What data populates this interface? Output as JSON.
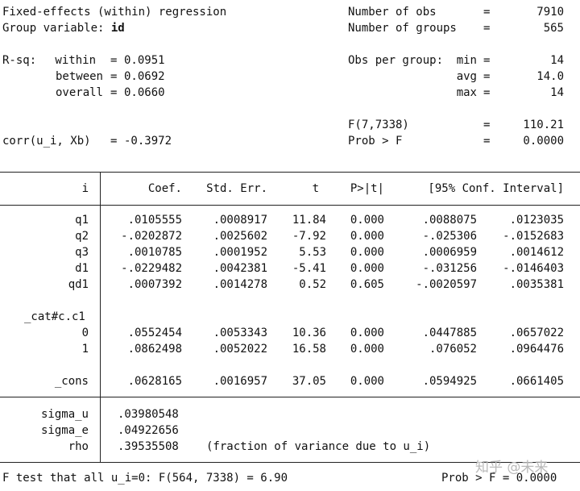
{
  "header": {
    "title": "Fixed-effects (within) regression",
    "group_label": "Group variable: ",
    "group_var": "id",
    "nobs_label": "Number of obs",
    "nobs_eq": "=",
    "nobs": "7910",
    "ngroups_label": "Number of groups",
    "ngroups_eq": "=",
    "ngroups": "565",
    "rsq_label": "R-sq:",
    "within_label": "within",
    "within_eq": "=",
    "within": "0.0951",
    "between_label": "between",
    "between_eq": "=",
    "between": "0.0692",
    "overall_label": "overall",
    "overall_eq": "=",
    "overall": "0.0660",
    "obs_per_group_label": "Obs per group:",
    "min_label": "min",
    "min_eq": "=",
    "min": "14",
    "avg_label": "avg",
    "avg_eq": "=",
    "avg": "14.0",
    "max_label": "max",
    "max_eq": "=",
    "max": "14",
    "f_label": "F(7,7338)",
    "f_eq": "=",
    "f": "110.21",
    "probf_label": "Prob > F",
    "probf_eq": "=",
    "probf": "0.0000",
    "corr_label": "corr(u_i, Xb)",
    "corr_eq": "=",
    "corr": "-0.3972"
  },
  "table": {
    "columns": [
      "i",
      "Coef.",
      "Std. Err.",
      "t",
      "P>|t|",
      "[95% Conf. Interval]"
    ],
    "rows": [
      {
        "name": "q1",
        "coef": ".0105555",
        "se": ".0008917",
        "t": "11.84",
        "p": "0.000",
        "lo": ".0088075",
        "hi": ".0123035"
      },
      {
        "name": "q2",
        "coef": "-.0202872",
        "se": ".0025602",
        "t": "-7.92",
        "p": "0.000",
        "lo": "-.025306",
        "hi": "-.0152683"
      },
      {
        "name": "q3",
        "coef": ".0010785",
        "se": ".0001952",
        "t": "5.53",
        "p": "0.000",
        "lo": ".0006959",
        "hi": ".0014612"
      },
      {
        "name": "d1",
        "coef": "-.0229482",
        "se": ".0042381",
        "t": "-5.41",
        "p": "0.000",
        "lo": "-.031256",
        "hi": "-.0146403"
      },
      {
        "name": "qd1",
        "coef": ".0007392",
        "se": ".0014278",
        "t": "0.52",
        "p": "0.605",
        "lo": "-.0020597",
        "hi": ".0035381"
      }
    ],
    "factor_label": "_cat#c.c1",
    "factor_rows": [
      {
        "name": "0",
        "coef": ".0552454",
        "se": ".0053343",
        "t": "10.36",
        "p": "0.000",
        "lo": ".0447885",
        "hi": ".0657022"
      },
      {
        "name": "1",
        "coef": ".0862498",
        "se": ".0052022",
        "t": "16.58",
        "p": "0.000",
        "lo": ".076052",
        "hi": ".0964476"
      }
    ],
    "cons": {
      "name": "_cons",
      "coef": ".0628165",
      "se": ".0016957",
      "t": "37.05",
      "p": "0.000",
      "lo": ".0594925",
      "hi": ".0661405"
    }
  },
  "sigma": {
    "sigma_u_label": "sigma_u",
    "sigma_u": ".03980548",
    "sigma_e_label": "sigma_e",
    "sigma_e": ".04922656",
    "rho_label": "rho",
    "rho": ".39535508",
    "rho_note": "(fraction of variance due to u_i)"
  },
  "footer": {
    "ftest": "F test that all u_i=0: F(564, 7338) = 6.90",
    "prob": "Prob > F = 0.0000"
  },
  "watermark": "知乎 @未来"
}
